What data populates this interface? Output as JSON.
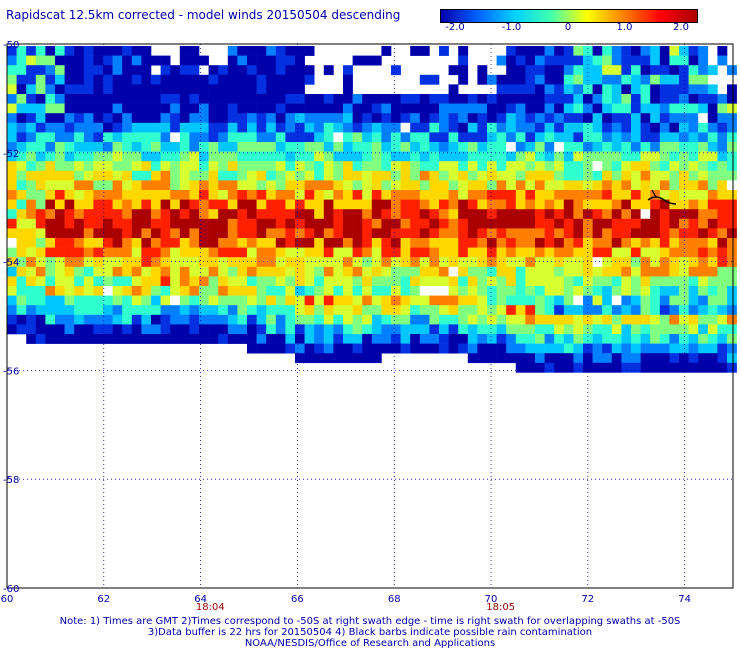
{
  "title": "Rapidscat 12.5km corrected - model winds 20150504 descending",
  "colorbar": {
    "min": -2.0,
    "max": 2.0,
    "labels": [
      "-2.0",
      "-1.0",
      "0",
      "1.0",
      "2.0"
    ],
    "colors": [
      "#0000aa",
      "#0060ff",
      "#00d0ff",
      "#40ffb0",
      "#ffff00",
      "#ff8000",
      "#ff0000",
      "#aa0000"
    ]
  },
  "map": {
    "lon_range": [
      60,
      75
    ],
    "lat_range": [
      -60,
      -50
    ],
    "lon_ticks": [
      "60",
      "62",
      "64",
      "66",
      "68",
      "70",
      "72",
      "74"
    ],
    "lat_ticks": [
      "-50",
      "-52",
      "-54",
      "-56",
      "-58",
      "-60"
    ],
    "time_labels": [
      {
        "lon": 64.2,
        "text": "18:04"
      },
      {
        "lon": 70.2,
        "text": "18:05"
      }
    ],
    "grid": "dotted"
  },
  "notes": {
    "line1": "Note: 1) Times are GMT 2)Times correspond to -50S at right swath edge - time is right swath for overlapping swaths at -50S",
    "line2": "3)Data buffer is 22 hrs for 20150504 4) Black barbs indicate possible rain contamination",
    "line3": "NOAA/NESDIS/Office of Research and Applications"
  }
}
